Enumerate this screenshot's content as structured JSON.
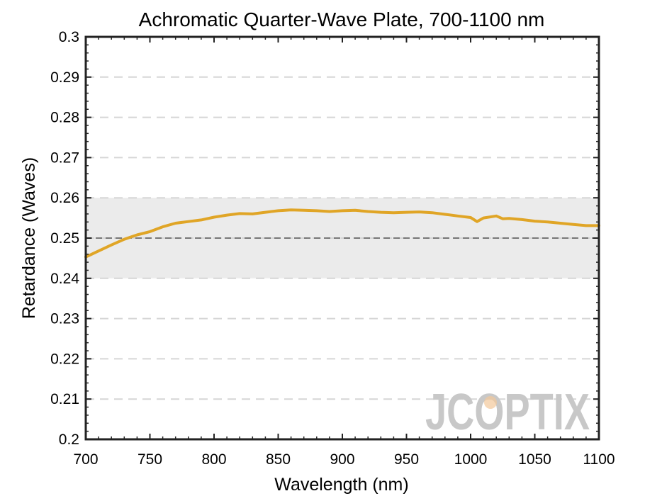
{
  "chart_data": {
    "type": "line",
    "title": "Achromatic Quarter-Wave Plate, 700-1100 nm",
    "xlabel": "Wavelength (nm)",
    "ylabel": "Retardance (Waves)",
    "xlim": [
      700,
      1100
    ],
    "ylim": [
      0.2,
      0.3
    ],
    "xticks": [
      "700",
      "750",
      "800",
      "850",
      "900",
      "950",
      "1000",
      "1050",
      "1100"
    ],
    "yticks": [
      "0.2",
      "0.21",
      "0.22",
      "0.23",
      "0.24",
      "0.25",
      "0.26",
      "0.27",
      "0.28",
      "0.29",
      "0.3"
    ],
    "grid": "horizontal dashed",
    "tolerance_band": [
      0.24,
      0.26
    ],
    "reference_line": 0.25,
    "series": [
      {
        "color": "#E0A526",
        "x": [
          700,
          710,
          720,
          730,
          740,
          750,
          760,
          770,
          780,
          790,
          800,
          810,
          820,
          830,
          840,
          850,
          860,
          870,
          880,
          890,
          900,
          910,
          920,
          930,
          940,
          950,
          960,
          970,
          980,
          990,
          1000,
          1005,
          1010,
          1020,
          1025,
          1030,
          1040,
          1050,
          1060,
          1070,
          1080,
          1090,
          1100
        ],
        "y": [
          0.2453,
          0.2468,
          0.2483,
          0.2497,
          0.2508,
          0.2516,
          0.2528,
          0.2537,
          0.2541,
          0.2545,
          0.2552,
          0.2557,
          0.2561,
          0.256,
          0.2564,
          0.2568,
          0.257,
          0.2569,
          0.2568,
          0.2566,
          0.2568,
          0.2569,
          0.2566,
          0.2564,
          0.2563,
          0.2564,
          0.2565,
          0.2563,
          0.2559,
          0.2555,
          0.2551,
          0.2541,
          0.255,
          0.2555,
          0.2548,
          0.2549,
          0.2546,
          0.2542,
          0.254,
          0.2537,
          0.2534,
          0.2531,
          0.2531
        ]
      }
    ]
  },
  "watermark": {
    "text": "JCOPTIX",
    "color": "#c8c8c8",
    "accent_color": "#f2c79a"
  },
  "colors": {
    "band": "#ebebeb",
    "grid": "#d6d6d6",
    "reference_line": "#555555",
    "axis": "#222222"
  }
}
